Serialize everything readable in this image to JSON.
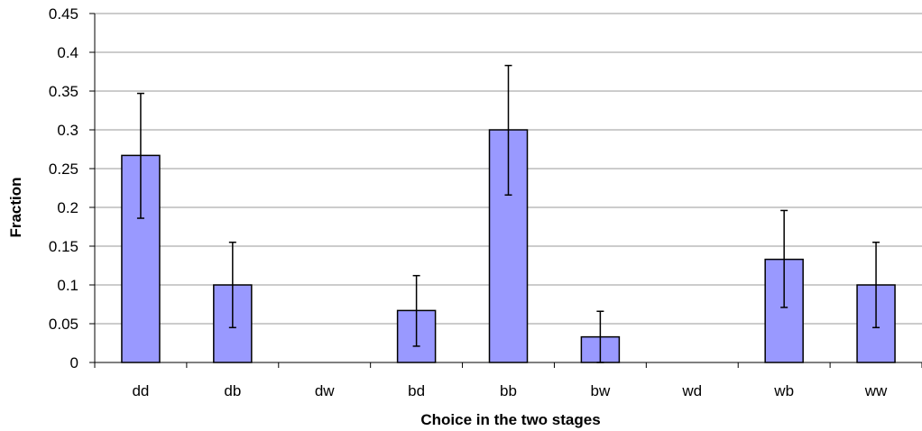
{
  "chart_data": {
    "type": "bar",
    "title": "",
    "xlabel": "Choice in the two stages",
    "ylabel": "Fraction",
    "categories": [
      "dd",
      "db",
      "dw",
      "bd",
      "bb",
      "bw",
      "wd",
      "wb",
      "ww"
    ],
    "values": [
      0.267,
      0.1,
      0,
      0.067,
      0.3,
      0.033,
      0,
      0.133,
      0.1
    ],
    "error_low": [
      0.186,
      0.045,
      0,
      0.021,
      0.216,
      0,
      0,
      0.071,
      0.045
    ],
    "error_high": [
      0.347,
      0.155,
      0,
      0.112,
      0.383,
      0.066,
      0,
      0.196,
      0.155
    ],
    "ylim": [
      0,
      0.45
    ],
    "yticks": [
      "0",
      "0.05",
      "0.1",
      "0.15",
      "0.2",
      "0.25",
      "0.3",
      "0.35",
      "0.4",
      "0.45"
    ],
    "grid": true,
    "legend": "none",
    "bar_color": "#9999ff",
    "bar_edge_color": "#000000",
    "grid_color": "#9a9a9a"
  }
}
